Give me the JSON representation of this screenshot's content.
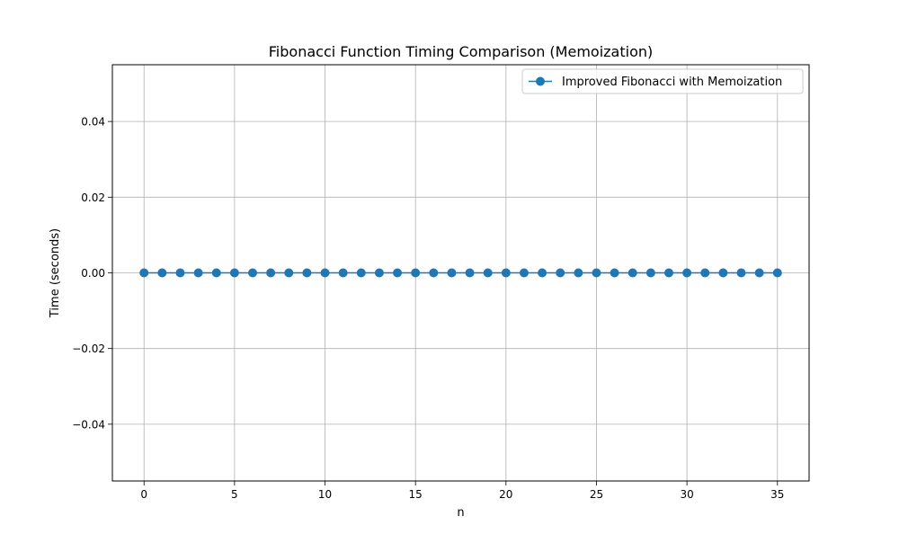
{
  "chart_data": {
    "type": "line",
    "title": "Fibonacci Function Timing Comparison (Memoization)",
    "xlabel": "n",
    "ylabel": "Time (seconds)",
    "xlim": [
      -1.75,
      36.75
    ],
    "ylim": [
      -0.055,
      0.055
    ],
    "xticks": [
      0,
      5,
      10,
      15,
      20,
      25,
      30,
      35
    ],
    "xtick_labels": [
      "0",
      "5",
      "10",
      "15",
      "20",
      "25",
      "30",
      "35"
    ],
    "yticks": [
      -0.04,
      -0.02,
      0.0,
      0.02,
      0.04
    ],
    "ytick_labels": [
      "−0.04",
      "−0.02",
      "0.00",
      "0.02",
      "0.04"
    ],
    "grid": true,
    "legend_position": "upper right",
    "series": [
      {
        "name": "Improved Fibonacci with Memoization",
        "color": "#1f77b4",
        "marker": "circle",
        "x": [
          0,
          1,
          2,
          3,
          4,
          5,
          6,
          7,
          8,
          9,
          10,
          11,
          12,
          13,
          14,
          15,
          16,
          17,
          18,
          19,
          20,
          21,
          22,
          23,
          24,
          25,
          26,
          27,
          28,
          29,
          30,
          31,
          32,
          33,
          34,
          35
        ],
        "y": [
          0,
          0,
          0,
          0,
          0,
          0,
          0,
          0,
          0,
          0,
          0,
          0,
          0,
          0,
          0,
          0,
          0,
          0,
          0,
          0,
          0,
          0,
          0,
          0,
          0,
          0,
          0,
          0,
          0,
          0,
          0,
          0,
          0,
          0,
          0,
          0
        ]
      }
    ]
  }
}
